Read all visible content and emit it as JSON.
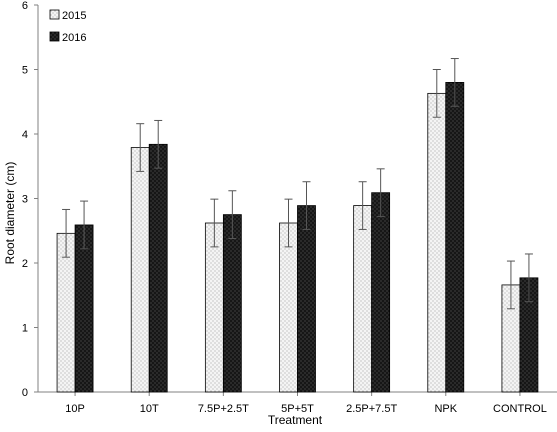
{
  "chart_data": {
    "type": "bar",
    "xlabel": "Treatment",
    "ylabel": "Root diameter (cm)",
    "ylim": [
      0,
      6
    ],
    "yticks": [
      "0",
      "1",
      "2",
      "3",
      "4",
      "5",
      "6"
    ],
    "categories": [
      "10P",
      "10T",
      "7.5P+2.5T",
      "5P+5T",
      "2.5P+7.5T",
      "NPK",
      "CONTROL"
    ],
    "series": [
      {
        "name": "2015",
        "values": [
          2.46,
          3.79,
          2.62,
          2.62,
          2.89,
          4.63,
          1.66
        ],
        "errors": [
          0.37,
          0.37,
          0.37,
          0.37,
          0.37,
          0.37,
          0.37
        ],
        "fill": "light-dotted"
      },
      {
        "name": "2016",
        "values": [
          2.59,
          3.84,
          2.75,
          2.89,
          3.09,
          4.8,
          1.77
        ],
        "errors": [
          0.37,
          0.37,
          0.37,
          0.37,
          0.37,
          0.37,
          0.37
        ],
        "fill": "dark-dotted"
      }
    ],
    "legend_position": "top-left",
    "grid": false,
    "colors": {
      "light_fill": "#f2f2f2",
      "dark_fill": "#1a1a1a",
      "axis": "#808080",
      "error_bar": "#555555"
    }
  }
}
